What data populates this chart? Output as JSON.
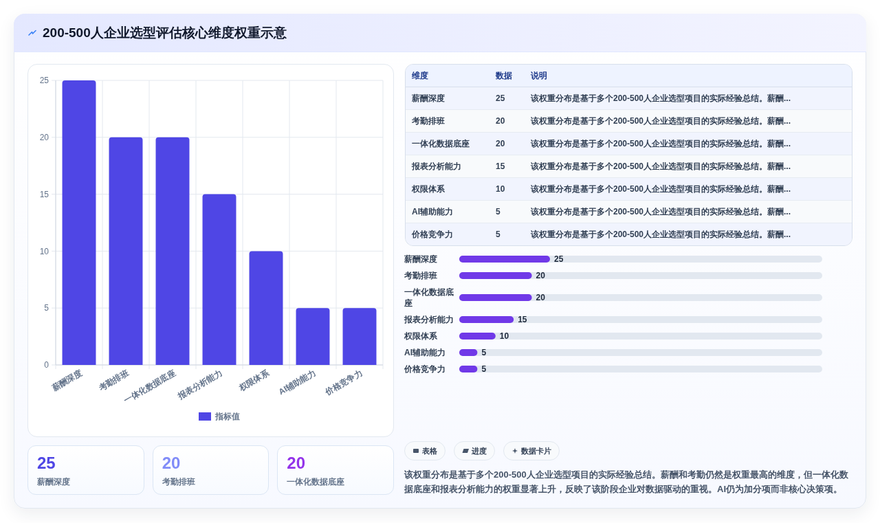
{
  "chart_data": [
    {
      "type": "bar",
      "title": "200-500人企业选型评估核心维度权重示意",
      "categories": [
        "薪酬深度",
        "考勤排班",
        "一体化数据底座",
        "报表分析能力",
        "权限体系",
        "AI辅助能力",
        "价格竞争力"
      ],
      "series": [
        {
          "name": "指标值",
          "color": "#4f46e5",
          "values": [
            25,
            20,
            20,
            15,
            10,
            5,
            5
          ]
        }
      ],
      "ylim": [
        0,
        25
      ],
      "yticks": [
        0,
        5,
        10,
        15,
        20,
        25
      ],
      "grid": true,
      "legend": "bottom"
    },
    {
      "type": "other",
      "categories": [
        "薪酬深度",
        "考勤排班",
        "一体化数据底座",
        "报表分析能力",
        "权限体系",
        "AI辅助能力",
        "价格竞争力"
      ],
      "values": [
        25,
        20,
        20,
        15,
        10,
        5,
        5
      ],
      "data_labels": true,
      "annotations": [
        "维度",
        "数据",
        "说明",
        "该权重分布是基于多个200-500人企业选型项目的实际经验总结。薪酬...",
        "该权重分布是基于多个200-500人企业选型项目的实际经验总结。薪酬...",
        "该权重分布是基于多个200-500人企业选型项目的实际经验总结。薪酬...",
        "该权重分布是基于多个200-500人企业选型项目的实际经验总结。薪酬...",
        "该权重分布是基于多个200-500人企业选型项目的实际经验总结。薪酬...",
        "该权重分布是基于多个200-500人企业选型项目的实际经验总结。薪酬...",
        "该权重分布是基于多个200-500人企业选型项目的实际经验总结。薪酬..."
      ]
    },
    {
      "type": "bar",
      "orientation": "horizontal",
      "categories": [
        "薪酬深度",
        "考勤排班",
        "一体化数据底座",
        "报表分析能力",
        "权限体系",
        "AI辅助能力",
        "价格竞争力"
      ],
      "values": [
        25,
        20,
        20,
        15,
        10,
        5,
        5
      ],
      "color": "#7039e8",
      "data_labels": true,
      "tick_labels": "y"
    },
    {
      "type": "other",
      "categories": [
        "薪酬深度",
        "考勤排班",
        "一体化数据底座"
      ],
      "values": [
        25,
        20,
        20
      ],
      "data_labels": true
    },
    {
      "type": "other",
      "categories": [
        "表格",
        "进度",
        "数据卡片"
      ],
      "annotations": [
        "该权重分布是基于多个200-500人企业选型项目的实际经验总结。薪酬和考勤仍然是权重最高的维度，但一体化数据底座和报表分析能力的权重显著上升，反映了该阶段企业对数据驱动的重视。AI仍为加分项而非核心决策项。"
      ]
    }
  ]
}
